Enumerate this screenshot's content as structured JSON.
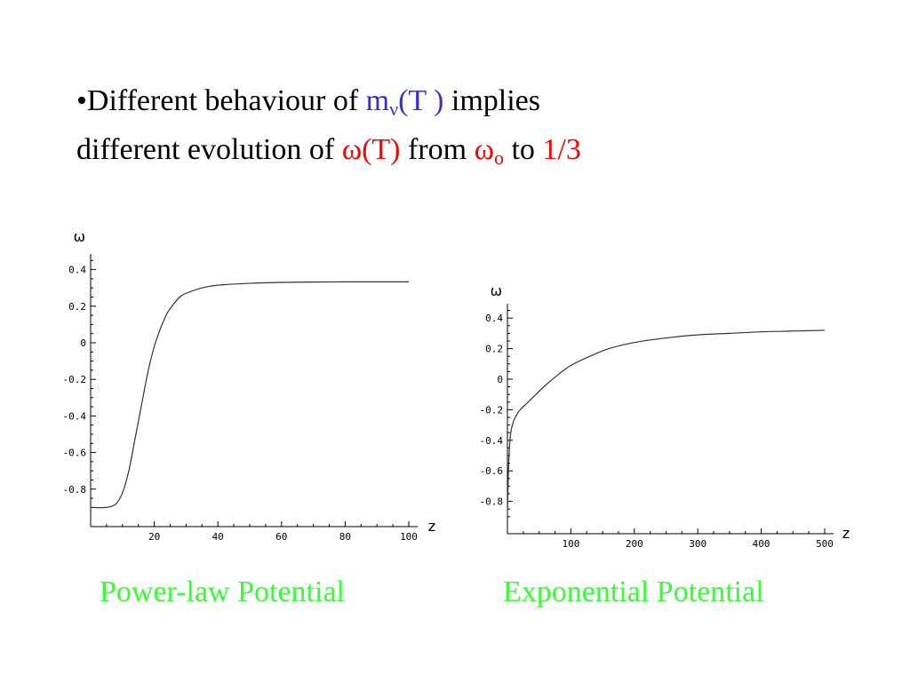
{
  "slide": {
    "bullet": "•",
    "line1_a": "Different behaviour of ",
    "line1_m": "m",
    "line1_m_sub": "ν",
    "line1_T": "(T )",
    "line1_b": " implies",
    "line2_a": "different evolution of ",
    "line2_omegaT": "ω(T)",
    "line2_from": " from ",
    "line2_omega": "ω",
    "line2_omega_sub": "o",
    "line2_to": " to ",
    "line2_third": "1/3",
    "colors": {
      "text": "#000000",
      "blue": "#3333cc",
      "red": "#ff0000",
      "caption": "#33ff33"
    }
  },
  "chart_data": [
    {
      "type": "line",
      "caption": "Power-law Potential",
      "xlabel": "z",
      "ylabel": "ω",
      "xlim": [
        0,
        100
      ],
      "ylim": [
        -1.0,
        0.45
      ],
      "xticks": [
        20,
        40,
        60,
        80,
        100
      ],
      "yticks": [
        0.4,
        0.2,
        0,
        -0.2,
        -0.4,
        -0.6,
        -0.8
      ],
      "ytick_labels": [
        "0.4",
        "0.2",
        "0",
        "-0.2",
        "-0.4",
        "-0.6",
        "-0.8"
      ],
      "grid": false,
      "series": [
        {
          "x": [
            0,
            5,
            8,
            10,
            12,
            14,
            16,
            18,
            20,
            22,
            24,
            26,
            28,
            30,
            35,
            40,
            50,
            60,
            70,
            80,
            90,
            100
          ],
          "y": [
            -0.9,
            -0.9,
            -0.88,
            -0.82,
            -0.7,
            -0.52,
            -0.34,
            -0.16,
            -0.02,
            0.08,
            0.16,
            0.21,
            0.25,
            0.27,
            0.3,
            0.315,
            0.325,
            0.33,
            0.332,
            0.333,
            0.333,
            0.333
          ]
        }
      ]
    },
    {
      "type": "line",
      "caption": "Exponential Potential",
      "xlabel": "z",
      "ylabel": "ω",
      "xlim": [
        0,
        500
      ],
      "ylim": [
        -1.0,
        0.45
      ],
      "xticks": [
        100,
        200,
        300,
        400,
        500
      ],
      "yticks": [
        0.4,
        0.2,
        0,
        -0.2,
        -0.4,
        -0.6,
        -0.8
      ],
      "ytick_labels": [
        "0.4",
        "0.2",
        "0",
        "-0.2",
        "-0.4",
        "-0.6",
        "-0.8"
      ],
      "grid": false,
      "series": [
        {
          "x": [
            0,
            1,
            2,
            4,
            6,
            8,
            10,
            15,
            20,
            30,
            40,
            60,
            80,
            100,
            130,
            160,
            200,
            250,
            300,
            350,
            400,
            450,
            500
          ],
          "y": [
            -0.9,
            -0.7,
            -0.55,
            -0.4,
            -0.33,
            -0.3,
            -0.27,
            -0.23,
            -0.2,
            -0.16,
            -0.12,
            -0.04,
            0.03,
            0.09,
            0.15,
            0.2,
            0.24,
            0.27,
            0.29,
            0.3,
            0.31,
            0.315,
            0.32
          ]
        }
      ]
    }
  ]
}
